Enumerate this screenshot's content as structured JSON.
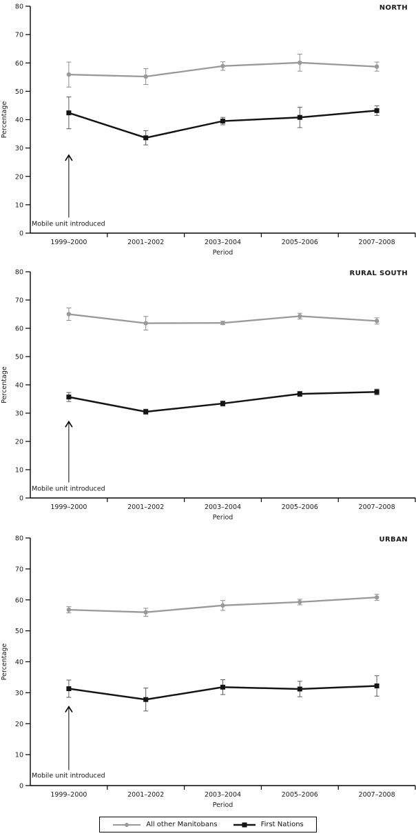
{
  "figure": {
    "description": "Three stacked line charts comparing screening percentages for First Nations and all other Manitobans by region and period",
    "background": "#ffffff",
    "text_color": "#1a1a1a"
  },
  "legend": {
    "entries": [
      {
        "label": "All other Manitobans",
        "color": "#999999",
        "marker": "circle"
      },
      {
        "label": "First Nations",
        "color": "#141414",
        "marker": "square"
      }
    ]
  },
  "annotation_label": "Mobile unit introduced",
  "chart_data": [
    {
      "type": "line",
      "title": "NORTH",
      "xlabel": "Period",
      "ylabel": "Percentage",
      "ylim": [
        0,
        80
      ],
      "ytick_step": 10,
      "grid": false,
      "legend_position": "shared-bottom",
      "categories": [
        "1999–2000",
        "2001–2002",
        "2003–2004",
        "2005–2006",
        "2007–2008"
      ],
      "series": [
        {
          "name": "All other Manitobans",
          "color": "#999999",
          "error_color": "#8c8c8c",
          "marker": "circle",
          "values": [
            55.9,
            55.2,
            58.9,
            60.1,
            58.7
          ],
          "errors": [
            4.4,
            2.8,
            1.5,
            3.0,
            1.6
          ]
        },
        {
          "name": "First Nations",
          "color": "#141414",
          "error_color": "#5a5a5a",
          "marker": "square",
          "values": [
            42.4,
            33.6,
            39.5,
            40.8,
            43.2
          ],
          "errors": [
            5.6,
            2.5,
            1.3,
            3.6,
            1.7
          ]
        }
      ],
      "annotation": {
        "text": "Mobile unit introduced",
        "category_index": 0,
        "arrow_from_y": 5.5,
        "arrow_to_y": 27.5,
        "text_y": 2.6
      }
    },
    {
      "type": "line",
      "title": "RURAL SOUTH",
      "xlabel": "Period",
      "ylabel": "Percentage",
      "ylim": [
        0,
        80
      ],
      "ytick_step": 10,
      "grid": false,
      "legend_position": "shared-bottom",
      "categories": [
        "1999–2000",
        "2001–2002",
        "2003–2004",
        "2005–2006",
        "2007–2008"
      ],
      "series": [
        {
          "name": "All other Manitobans",
          "color": "#999999",
          "error_color": "#8c8c8c",
          "marker": "circle",
          "values": [
            65.0,
            61.8,
            61.9,
            64.3,
            62.6
          ],
          "errors": [
            2.2,
            2.4,
            0.6,
            1.0,
            1.1
          ]
        },
        {
          "name": "First Nations",
          "color": "#141414",
          "error_color": "#5a5a5a",
          "marker": "square",
          "values": [
            35.7,
            30.5,
            33.4,
            36.8,
            37.5
          ],
          "errors": [
            1.6,
            0.9,
            0.9,
            0.9,
            1.0
          ]
        }
      ],
      "annotation": {
        "text": "Mobile unit introduced",
        "category_index": 0,
        "arrow_from_y": 5.5,
        "arrow_to_y": 27.0,
        "text_y": 2.6
      }
    },
    {
      "type": "line",
      "title": "URBAN",
      "xlabel": "Period",
      "ylabel": "Percentage",
      "ylim": [
        0,
        80
      ],
      "ytick_step": 10,
      "grid": false,
      "legend_position": "shared-bottom",
      "categories": [
        "1999–2000",
        "2001–2002",
        "2003–2004",
        "2005–2006",
        "2007–2008"
      ],
      "series": [
        {
          "name": "All other Manitobans",
          "color": "#999999",
          "error_color": "#8c8c8c",
          "marker": "circle",
          "values": [
            56.8,
            56.0,
            58.2,
            59.3,
            60.8
          ],
          "errors": [
            1.0,
            1.3,
            1.6,
            0.9,
            1.0
          ]
        },
        {
          "name": "First Nations",
          "color": "#141414",
          "error_color": "#5a5a5a",
          "marker": "square",
          "values": [
            31.3,
            27.8,
            31.8,
            31.2,
            32.2
          ],
          "errors": [
            2.8,
            3.7,
            2.4,
            2.5,
            3.3
          ]
        }
      ],
      "annotation": {
        "text": "Mobile unit introduced",
        "category_index": 0,
        "arrow_from_y": 5.0,
        "arrow_to_y": 25.5,
        "text_y": 2.6
      }
    }
  ]
}
